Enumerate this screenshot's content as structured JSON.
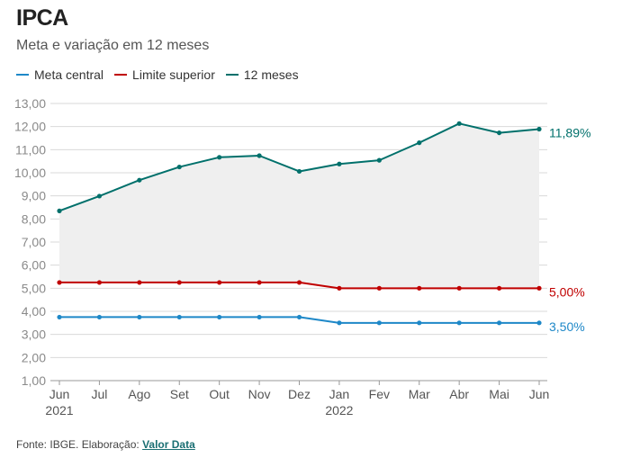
{
  "title": "IPCA",
  "subtitle": "Meta e variação em 12 meses",
  "footer": {
    "prefix": "Fonte: IBGE. Elaboração: ",
    "link_label": "Valor Data"
  },
  "colors": {
    "meta_central": "#1e88c8",
    "limite_superior": "#c00000",
    "doze_meses": "#00706b",
    "area_fill": "#efefef",
    "grid": "#d9d9d9",
    "axis_text": "#8a8a8a"
  },
  "chart_data": {
    "type": "line",
    "categories": [
      "Jun",
      "Jul",
      "Ago",
      "Set",
      "Out",
      "Nov",
      "Dez",
      "Jan",
      "Fev",
      "Mar",
      "Abr",
      "Mai",
      "Jun"
    ],
    "year_labels": [
      {
        "index": 0,
        "label": "2021"
      },
      {
        "index": 7,
        "label": "2022"
      }
    ],
    "ylim": [
      1.0,
      13.0
    ],
    "yticks": [
      "1,00",
      "2,00",
      "3,00",
      "4,00",
      "5,00",
      "6,00",
      "7,00",
      "8,00",
      "9,00",
      "10,00",
      "11,00",
      "12,00",
      "13,00"
    ],
    "grid": true,
    "legend_position": "top-left",
    "series": [
      {
        "name": "Meta central",
        "key": "meta_central",
        "values": [
          3.75,
          3.75,
          3.75,
          3.75,
          3.75,
          3.75,
          3.75,
          3.5,
          3.5,
          3.5,
          3.5,
          3.5,
          3.5
        ],
        "end_label": "3,50%"
      },
      {
        "name": "Limite superior",
        "key": "limite_superior",
        "values": [
          5.25,
          5.25,
          5.25,
          5.25,
          5.25,
          5.25,
          5.25,
          5.0,
          5.0,
          5.0,
          5.0,
          5.0,
          5.0
        ],
        "end_label": "5,00%"
      },
      {
        "name": "12 meses",
        "key": "doze_meses",
        "values": [
          8.35,
          8.99,
          9.68,
          10.25,
          10.67,
          10.74,
          10.06,
          10.38,
          10.54,
          11.3,
          12.13,
          11.73,
          11.89
        ],
        "end_label": "11,89%"
      }
    ]
  }
}
